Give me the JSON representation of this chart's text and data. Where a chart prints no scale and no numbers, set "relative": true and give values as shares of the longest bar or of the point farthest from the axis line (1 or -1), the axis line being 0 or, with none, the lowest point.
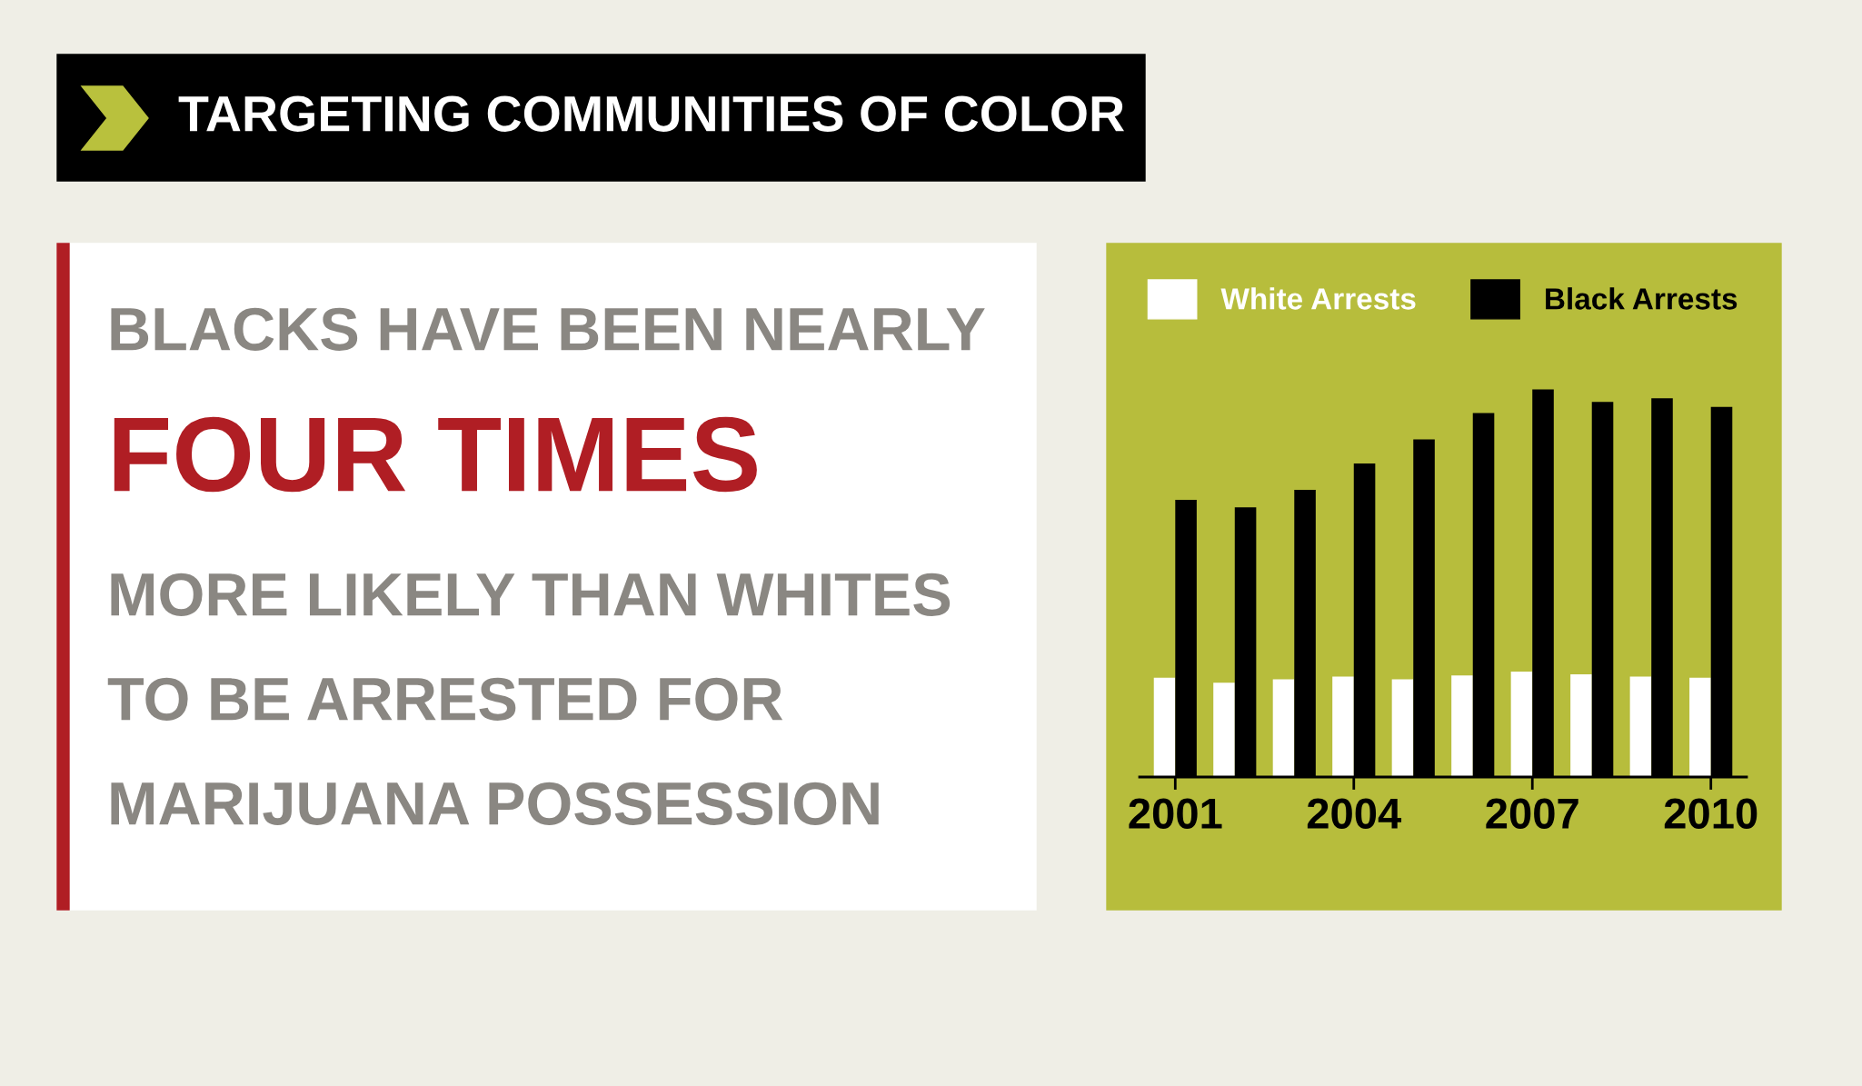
{
  "chart_data": {
    "type": "bar",
    "title": "TARGETING COMMUNITIES OF COLOR",
    "annotations": [
      "BLACKS HAVE BEEN NEARLY",
      "FOUR TIMES",
      "MORE LIKELY THAN WHITES",
      "TO BE ARRESTED FOR",
      "MARIJUANA POSSESSION"
    ],
    "categories": [
      "2001",
      null,
      null,
      "2004",
      null,
      null,
      "2007",
      null,
      null,
      "2010"
    ],
    "relative": true,
    "series": [
      {
        "name": "White Arrests",
        "color": "#ffffff",
        "values": [
          0.256,
          0.243,
          0.252,
          0.259,
          0.252,
          0.262,
          0.272,
          0.265,
          0.259,
          0.256
        ]
      },
      {
        "name": "Black Arrests",
        "color": "#000000",
        "values": [
          0.715,
          0.696,
          0.741,
          0.809,
          0.871,
          0.939,
          1.0,
          0.968,
          0.977,
          0.955
        ]
      }
    ],
    "legend": "top"
  }
}
